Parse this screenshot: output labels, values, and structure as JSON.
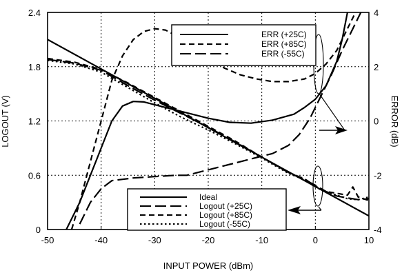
{
  "chart_data": {
    "type": "line",
    "xlabel": "INPUT POWER (dBm)",
    "ylabel_left": "LOGOUT (V)",
    "ylabel_right": "ERROR (dB)",
    "xlim": [
      -50,
      10
    ],
    "ylim_left": [
      0,
      2.4
    ],
    "ylim_right": [
      -4,
      4
    ],
    "x_ticks": [
      "-50",
      "-40",
      "-30",
      "-20",
      "-10",
      "0",
      "10"
    ],
    "y_left_ticks": [
      "0",
      "0.6",
      "1.2",
      "1.8",
      "2.4"
    ],
    "y_right_ticks": [
      "-4",
      "-2",
      "0",
      "2",
      "4"
    ],
    "grid": "dotted",
    "legend_error": {
      "placement": "top-right",
      "entries": [
        "ERR (+25C)",
        "ERR (+85C)",
        "ERR (-55C)"
      ]
    },
    "legend_logout": {
      "placement": "bottom-center",
      "entries": [
        "Ideal",
        "Logout (+25C)",
        "Logout (+85C)",
        "Logout (-55C)"
      ]
    },
    "series_left": [
      {
        "name": "Ideal",
        "style": "solid",
        "x": [
          -50,
          10
        ],
        "y": [
          2.1,
          0.15
        ]
      },
      {
        "name": "Logout (+25C)",
        "style": "long-dash",
        "x": [
          -50,
          -45,
          -40,
          -35,
          -30,
          -25,
          -20,
          -15,
          -10,
          -5,
          -2,
          0,
          2,
          4,
          6,
          8,
          10
        ],
        "y": [
          1.88,
          1.84,
          1.76,
          1.59,
          1.43,
          1.28,
          1.13,
          0.97,
          0.8,
          0.63,
          0.55,
          0.49,
          0.42,
          0.37,
          0.35,
          0.33,
          0.34
        ]
      },
      {
        "name": "Logout (+85C)",
        "style": "short-dash",
        "x": [
          -50,
          -45,
          -40,
          -35,
          -30,
          -25,
          -20,
          -15,
          -10,
          -5,
          -2,
          0,
          2,
          4,
          6,
          7,
          8,
          10
        ],
        "y": [
          1.89,
          1.85,
          1.77,
          1.62,
          1.46,
          1.3,
          1.14,
          0.98,
          0.8,
          0.63,
          0.56,
          0.48,
          0.42,
          0.4,
          0.38,
          0.47,
          0.36,
          0.32
        ]
      },
      {
        "name": "Logout (-55C)",
        "style": "dotted",
        "x": [
          -50,
          -45,
          -40,
          -35,
          -30,
          -25,
          -20,
          -15,
          -10,
          -5,
          -2,
          0,
          2,
          4,
          6,
          8,
          10
        ],
        "y": [
          1.87,
          1.83,
          1.74,
          1.57,
          1.4,
          1.24,
          1.1,
          0.95,
          0.79,
          0.62,
          0.55,
          0.47,
          0.41,
          0.38,
          0.34,
          0.33,
          0.36
        ]
      }
    ],
    "series_right": [
      {
        "name": "ERR (+25C)",
        "style": "solid",
        "x": [
          -46.5,
          -44,
          -42,
          -40,
          -38,
          -36,
          -34,
          -32,
          -30,
          -27,
          -24,
          -20,
          -16,
          -12,
          -8,
          -4,
          -2,
          0,
          2,
          4,
          5,
          6,
          7
        ],
        "y": [
          -4,
          -3,
          -2,
          -1,
          0,
          0.55,
          0.72,
          0.7,
          0.6,
          0.45,
          0.3,
          0.1,
          -0.05,
          -0.08,
          0.03,
          0.25,
          0.5,
          0.8,
          1.3,
          2.2,
          3.0,
          4.0,
          4.2
        ]
      },
      {
        "name": "ERR (+85C)",
        "style": "short-dash",
        "x": [
          -45.5,
          -44,
          -42,
          -40,
          -38,
          -36,
          -34,
          -32,
          -30,
          -28,
          -26,
          -24,
          -22,
          -20,
          -17,
          -14,
          -11,
          -8,
          -5,
          -2,
          0,
          2,
          4,
          6,
          7.5
        ],
        "y": [
          -4,
          -3,
          -1.5,
          0,
          1.5,
          2.4,
          3.0,
          3.3,
          3.4,
          3.35,
          3.15,
          2.85,
          2.55,
          2.3,
          1.95,
          1.7,
          1.55,
          1.45,
          1.45,
          1.55,
          1.75,
          2.1,
          2.6,
          3.4,
          4.0
        ]
      },
      {
        "name": "ERR (-55C)",
        "style": "long-dash",
        "x": [
          -44,
          -42,
          -40,
          -38,
          -36,
          -34,
          -30,
          -26,
          -24,
          -20,
          -16,
          -12,
          -8,
          -5,
          -3,
          -1,
          0,
          1,
          3,
          5,
          7,
          8.5
        ],
        "y": [
          -3.8,
          -3,
          -2.5,
          -2.2,
          -2.15,
          -2.1,
          -2.05,
          -2.0,
          -2.0,
          -1.8,
          -1.6,
          -1.4,
          -1.2,
          -0.9,
          -0.5,
          0.1,
          0.5,
          0.9,
          1.7,
          2.6,
          3.4,
          4.0
        ]
      }
    ]
  }
}
